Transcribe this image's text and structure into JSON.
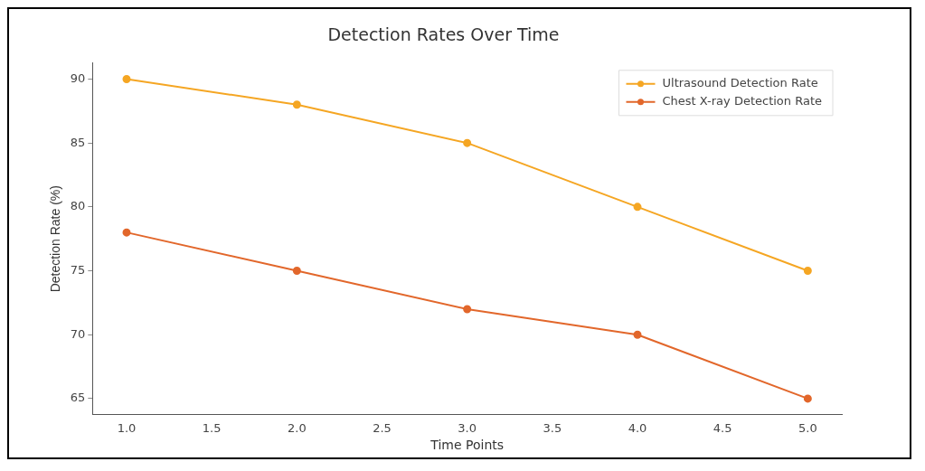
{
  "chart_data": {
    "type": "line",
    "title": "Detection Rates Over Time",
    "xlabel": "Time Points",
    "ylabel": "Detection Rate (%)",
    "x": [
      1,
      2,
      3,
      4,
      5
    ],
    "series": [
      {
        "name": "Ultrasound Detection Rate",
        "color": "#f5a623",
        "values": [
          90,
          88,
          85,
          80,
          75
        ]
      },
      {
        "name": "Chest X-ray Detection Rate",
        "color": "#e2672b",
        "values": [
          78,
          75,
          72,
          70,
          65
        ]
      }
    ],
    "xlim": [
      0.8,
      5.2
    ],
    "xticks": [
      {
        "value": 1,
        "label": "1.0"
      },
      {
        "value": 1.5,
        "label": "1.5"
      },
      {
        "value": 2,
        "label": "2.0"
      },
      {
        "value": 2.5,
        "label": "2.5"
      },
      {
        "value": 3,
        "label": "3.0"
      },
      {
        "value": 3.5,
        "label": "3.5"
      },
      {
        "value": 4,
        "label": "4.0"
      },
      {
        "value": 4.5,
        "label": "4.5"
      },
      {
        "value": 5,
        "label": "5.0"
      }
    ],
    "ylim": [
      63.75,
      91.25
    ],
    "yticks": [
      65,
      70,
      75,
      80,
      85,
      90
    ],
    "grid": false,
    "legend": "top right",
    "marker": "circle",
    "line_style": "solid"
  }
}
